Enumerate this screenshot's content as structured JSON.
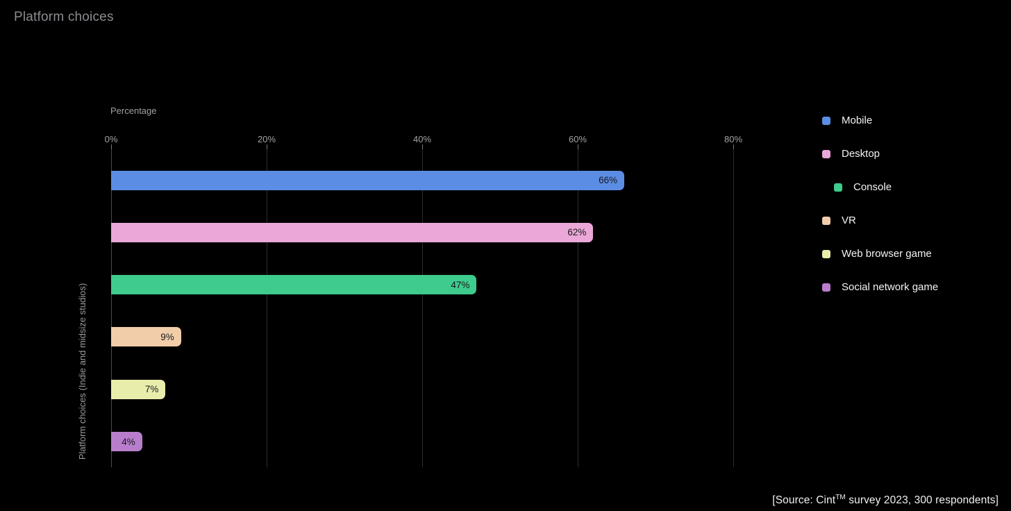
{
  "page": {
    "title": "Platform choices"
  },
  "chart_data": {
    "type": "bar",
    "orientation": "horizontal",
    "title": "Platform choices",
    "xlabel": "Percentage",
    "ylabel": "Platform choices (Indie and midsize studios)",
    "categories": [
      "Mobile",
      "Desktop",
      "Console",
      "VR",
      "Web browser game",
      "Social network game"
    ],
    "values": [
      66,
      62,
      47,
      9,
      7,
      4
    ],
    "value_labels": [
      "66%",
      "62%",
      "47%",
      "9%",
      "7%",
      "4%"
    ],
    "colors": [
      "#5b8de4",
      "#eaa7d7",
      "#3ecb8d",
      "#f2cdaa",
      "#e9edac",
      "#b87ecb"
    ],
    "xlim": [
      0,
      100
    ],
    "xticks": [
      0,
      20,
      40,
      60,
      80
    ],
    "xtick_labels": [
      "0%",
      "20%",
      "40%",
      "60%",
      "80%"
    ],
    "grid": true,
    "legend_position": "right",
    "background": "#000000"
  },
  "source": {
    "prefix": "[Source: Cint",
    "trademark": "TM",
    "suffix": " survey 2023, 300 respondents]"
  }
}
